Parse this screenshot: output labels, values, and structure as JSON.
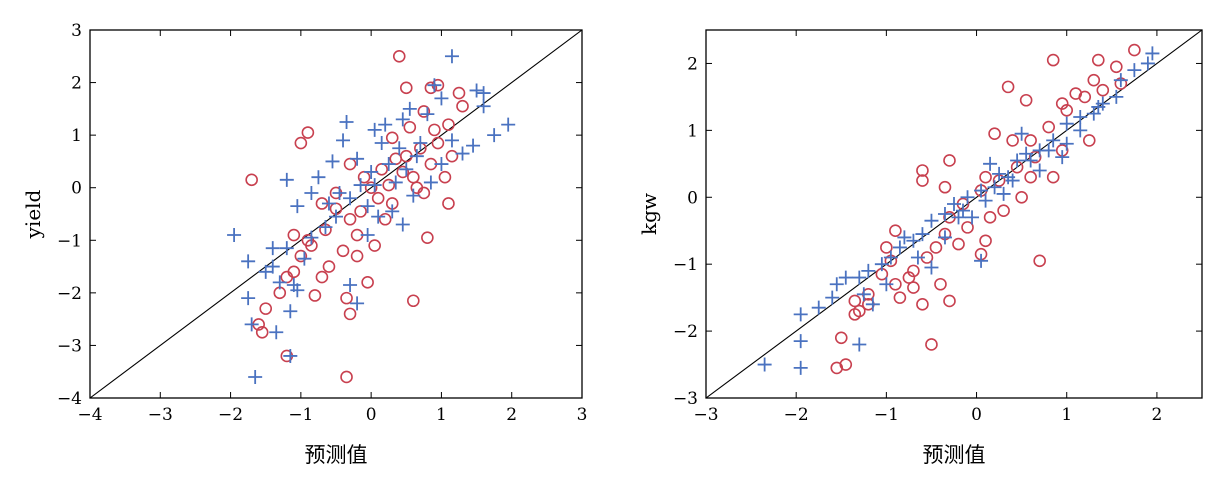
{
  "chart_data": [
    {
      "type": "scatter",
      "xlabel": "预测值",
      "ylabel": "yield",
      "xlim": [
        -4,
        3
      ],
      "ylim": [
        -4,
        3
      ],
      "xticks": [
        "−4",
        "−3",
        "−2",
        "−1",
        "0",
        "1",
        "2",
        "3"
      ],
      "yticks": [
        "−4",
        "−3",
        "−2",
        "−1",
        "0",
        "1",
        "2",
        "3"
      ],
      "reference_line": {
        "from": [
          -4,
          -4
        ],
        "to": [
          3,
          3
        ],
        "color": "#000000"
      },
      "series": [
        {
          "marker": "circle",
          "color": "#c8404f",
          "points": [
            [
              -1.7,
              0.15
            ],
            [
              -0.9,
              1.05
            ],
            [
              -1.0,
              0.85
            ],
            [
              0.4,
              2.5
            ],
            [
              0.5,
              1.9
            ],
            [
              0.85,
              1.9
            ],
            [
              0.95,
              1.95
            ],
            [
              1.3,
              1.55
            ],
            [
              1.25,
              1.8
            ],
            [
              0.75,
              1.45
            ],
            [
              0.55,
              1.15
            ],
            [
              0.3,
              0.95
            ],
            [
              0.7,
              0.75
            ],
            [
              0.9,
              1.1
            ],
            [
              1.1,
              1.2
            ],
            [
              1.15,
              0.6
            ],
            [
              1.05,
              0.2
            ],
            [
              1.1,
              -0.3
            ],
            [
              0.8,
              -0.95
            ],
            [
              -0.7,
              -0.3
            ],
            [
              -0.5,
              -0.4
            ],
            [
              -0.3,
              -0.6
            ],
            [
              -0.2,
              -0.9
            ],
            [
              -0.4,
              -1.2
            ],
            [
              -0.6,
              -1.5
            ],
            [
              -0.7,
              -1.7
            ],
            [
              -0.8,
              -2.05
            ],
            [
              -0.35,
              -2.1
            ],
            [
              -0.3,
              -2.4
            ],
            [
              -1.1,
              -1.6
            ],
            [
              -1.2,
              -1.7
            ],
            [
              -1.3,
              -2.0
            ],
            [
              -1.5,
              -2.3
            ],
            [
              -1.6,
              -2.6
            ],
            [
              -1.55,
              -2.75
            ],
            [
              -1.2,
              -3.2
            ],
            [
              -0.35,
              -3.6
            ],
            [
              -0.05,
              -1.8
            ],
            [
              0.6,
              -2.15
            ],
            [
              0.05,
              -1.1
            ],
            [
              -0.15,
              -0.45
            ],
            [
              0.1,
              -0.2
            ],
            [
              0.25,
              0.05
            ],
            [
              0.45,
              0.3
            ],
            [
              0.35,
              0.55
            ],
            [
              0.15,
              0.35
            ],
            [
              -0.1,
              0.2
            ],
            [
              -0.3,
              0.45
            ],
            [
              -0.5,
              -0.1
            ],
            [
              -0.9,
              -1.0
            ],
            [
              -1.0,
              -1.3
            ],
            [
              -1.1,
              -0.9
            ],
            [
              0.2,
              -0.6
            ],
            [
              0.5,
              0.6
            ],
            [
              0.65,
              0.0
            ],
            [
              0.85,
              0.45
            ],
            [
              0.95,
              0.85
            ],
            [
              -0.2,
              -1.3
            ],
            [
              -0.85,
              -1.1
            ],
            [
              -0.65,
              -0.8
            ],
            [
              0.0,
              0.0
            ],
            [
              0.3,
              -0.3
            ],
            [
              0.6,
              0.2
            ],
            [
              0.75,
              -0.1
            ]
          ]
        },
        {
          "marker": "plus",
          "color": "#4a72c0",
          "points": [
            [
              1.15,
              2.5
            ],
            [
              1.5,
              1.85
            ],
            [
              1.6,
              1.8
            ],
            [
              1.6,
              1.55
            ],
            [
              1.95,
              1.2
            ],
            [
              1.75,
              1.0
            ],
            [
              1.45,
              0.8
            ],
            [
              1.3,
              0.65
            ],
            [
              1.15,
              0.9
            ],
            [
              1.0,
              1.7
            ],
            [
              0.9,
              1.95
            ],
            [
              0.8,
              1.4
            ],
            [
              0.55,
              1.5
            ],
            [
              0.45,
              1.3
            ],
            [
              0.2,
              1.2
            ],
            [
              0.05,
              1.1
            ],
            [
              -0.35,
              1.25
            ],
            [
              -0.4,
              0.9
            ],
            [
              -0.55,
              0.5
            ],
            [
              -0.75,
              0.2
            ],
            [
              -0.85,
              -0.1
            ],
            [
              -1.05,
              -0.35
            ],
            [
              -1.2,
              0.15
            ],
            [
              -1.95,
              -0.9
            ],
            [
              -1.75,
              -1.4
            ],
            [
              -1.75,
              -2.1
            ],
            [
              -1.4,
              -1.15
            ],
            [
              -1.4,
              -1.5
            ],
            [
              -1.5,
              -1.6
            ],
            [
              -1.3,
              -1.8
            ],
            [
              -1.1,
              -1.85
            ],
            [
              -1.05,
              -1.95
            ],
            [
              -1.15,
              -2.35
            ],
            [
              -1.35,
              -2.75
            ],
            [
              -1.7,
              -2.6
            ],
            [
              -1.15,
              -3.2
            ],
            [
              -1.65,
              -3.6
            ],
            [
              -0.3,
              -1.85
            ],
            [
              -0.2,
              -2.2
            ],
            [
              -0.05,
              -0.9
            ],
            [
              0.1,
              -0.55
            ],
            [
              0.3,
              -0.45
            ],
            [
              0.6,
              -0.15
            ],
            [
              0.85,
              0.1
            ],
            [
              1.0,
              0.45
            ],
            [
              0.7,
              0.85
            ],
            [
              0.4,
              0.75
            ],
            [
              0.25,
              0.45
            ],
            [
              0.0,
              0.3
            ],
            [
              -0.15,
              0.05
            ],
            [
              -0.3,
              -0.2
            ],
            [
              -0.5,
              -0.55
            ],
            [
              -0.65,
              -0.75
            ],
            [
              -0.85,
              -0.95
            ],
            [
              -0.95,
              -1.35
            ],
            [
              -1.2,
              -1.15
            ],
            [
              -0.45,
              -0.1
            ],
            [
              -0.2,
              0.55
            ],
            [
              0.15,
              0.85
            ],
            [
              0.35,
              0.1
            ],
            [
              0.5,
              0.35
            ],
            [
              0.65,
              0.6
            ],
            [
              -0.05,
              -0.35
            ],
            [
              -0.6,
              -0.3
            ],
            [
              0.05,
              0.05
            ],
            [
              0.45,
              -0.7
            ]
          ]
        }
      ]
    },
    {
      "type": "scatter",
      "xlabel": "预测值",
      "ylabel": "kgw",
      "xlim": [
        -3,
        2.5
      ],
      "ylim": [
        -3,
        2.5
      ],
      "xticks": [
        "−3",
        "−2",
        "−1",
        "0",
        "1",
        "2"
      ],
      "yticks": [
        "−3",
        "−2",
        "−1",
        "0",
        "1",
        "2"
      ],
      "reference_line": {
        "from": [
          -3,
          -3
        ],
        "to": [
          2.5,
          2.5
        ],
        "color": "#000000"
      },
      "series": [
        {
          "marker": "circle",
          "color": "#c8404f",
          "points": [
            [
              0.85,
              2.05
            ],
            [
              1.35,
              2.05
            ],
            [
              1.75,
              2.2
            ],
            [
              1.55,
              1.95
            ],
            [
              1.3,
              1.75
            ],
            [
              1.1,
              1.55
            ],
            [
              0.95,
              1.4
            ],
            [
              0.55,
              1.45
            ],
            [
              0.35,
              1.65
            ],
            [
              0.2,
              0.95
            ],
            [
              0.4,
              0.85
            ],
            [
              0.65,
              0.6
            ],
            [
              0.85,
              0.3
            ],
            [
              0.7,
              -0.95
            ],
            [
              0.1,
              -0.65
            ],
            [
              0.05,
              -0.85
            ],
            [
              0.15,
              -0.3
            ],
            [
              -0.15,
              -0.1
            ],
            [
              -0.35,
              0.15
            ],
            [
              -0.6,
              0.4
            ],
            [
              -0.6,
              0.25
            ],
            [
              -0.3,
              -0.3
            ],
            [
              -0.35,
              -0.55
            ],
            [
              -0.45,
              -0.75
            ],
            [
              -0.55,
              -0.9
            ],
            [
              -0.7,
              -1.1
            ],
            [
              -0.75,
              -1.2
            ],
            [
              -0.7,
              -1.35
            ],
            [
              -0.85,
              -1.5
            ],
            [
              -0.6,
              -1.6
            ],
            [
              -0.5,
              -2.2
            ],
            [
              -0.3,
              -1.55
            ],
            [
              -0.4,
              -1.3
            ],
            [
              -0.95,
              -0.95
            ],
            [
              -1.05,
              -1.15
            ],
            [
              -1.2,
              -1.45
            ],
            [
              -1.35,
              -1.55
            ],
            [
              -1.3,
              -1.7
            ],
            [
              -1.35,
              -1.75
            ],
            [
              -1.55,
              -2.55
            ],
            [
              -1.45,
              -2.5
            ],
            [
              -1.5,
              -2.1
            ],
            [
              -1.2,
              -1.6
            ],
            [
              -0.9,
              -1.3
            ],
            [
              0.05,
              0.1
            ],
            [
              0.25,
              0.25
            ],
            [
              0.45,
              0.45
            ],
            [
              0.6,
              0.85
            ],
            [
              0.8,
              1.05
            ],
            [
              1.0,
              1.3
            ],
            [
              1.2,
              1.5
            ],
            [
              1.4,
              1.6
            ],
            [
              1.6,
              1.7
            ],
            [
              1.25,
              0.85
            ],
            [
              0.95,
              0.7
            ],
            [
              0.5,
              0.0
            ],
            [
              0.3,
              -0.2
            ],
            [
              -0.1,
              -0.45
            ],
            [
              -0.2,
              -0.7
            ],
            [
              -0.9,
              -0.5
            ],
            [
              -1.0,
              -0.75
            ],
            [
              -0.3,
              0.55
            ],
            [
              0.1,
              0.3
            ],
            [
              0.6,
              0.3
            ]
          ]
        },
        {
          "marker": "plus",
          "color": "#4a72c0",
          "points": [
            [
              1.95,
              2.15
            ],
            [
              1.9,
              2.0
            ],
            [
              1.75,
              1.9
            ],
            [
              1.6,
              1.75
            ],
            [
              1.55,
              1.5
            ],
            [
              1.35,
              1.35
            ],
            [
              1.3,
              1.25
            ],
            [
              1.15,
              1.2
            ],
            [
              1.0,
              1.1
            ],
            [
              1.0,
              0.8
            ],
            [
              0.85,
              0.85
            ],
            [
              0.7,
              0.7
            ],
            [
              0.55,
              0.65
            ],
            [
              0.45,
              0.55
            ],
            [
              0.35,
              0.3
            ],
            [
              0.2,
              0.15
            ],
            [
              0.05,
              0.1
            ],
            [
              -0.1,
              0.0
            ],
            [
              -0.25,
              -0.1
            ],
            [
              -0.35,
              -0.25
            ],
            [
              -0.5,
              -0.35
            ],
            [
              -0.6,
              -0.55
            ],
            [
              -0.7,
              -0.65
            ],
            [
              -0.85,
              -0.75
            ],
            [
              -0.95,
              -0.9
            ],
            [
              -1.05,
              -1.0
            ],
            [
              -1.2,
              -1.1
            ],
            [
              -1.3,
              -1.2
            ],
            [
              -1.45,
              -1.2
            ],
            [
              -1.55,
              -1.3
            ],
            [
              -1.6,
              -1.5
            ],
            [
              -1.75,
              -1.65
            ],
            [
              -1.95,
              -1.75
            ],
            [
              -1.95,
              -2.15
            ],
            [
              -1.95,
              -2.55
            ],
            [
              -2.35,
              -2.5
            ],
            [
              -1.3,
              -2.2
            ],
            [
              -1.15,
              -1.6
            ],
            [
              -0.5,
              -1.05
            ],
            [
              -0.35,
              -0.6
            ],
            [
              -0.2,
              -0.3
            ],
            [
              0.1,
              -0.05
            ],
            [
              0.25,
              0.35
            ],
            [
              0.5,
              0.95
            ],
            [
              0.4,
              0.25
            ],
            [
              0.7,
              0.4
            ],
            [
              0.95,
              0.6
            ],
            [
              1.15,
              1.0
            ],
            [
              1.4,
              1.4
            ],
            [
              0.05,
              -0.95
            ],
            [
              -0.05,
              -0.3
            ],
            [
              -0.65,
              -0.9
            ],
            [
              -0.8,
              -0.6
            ],
            [
              -1.0,
              -1.3
            ],
            [
              -1.25,
              -1.45
            ],
            [
              0.15,
              0.5
            ],
            [
              0.3,
              0.05
            ],
            [
              -0.15,
              -0.2
            ],
            [
              0.6,
              0.55
            ],
            [
              0.8,
              0.7
            ]
          ]
        }
      ]
    }
  ]
}
